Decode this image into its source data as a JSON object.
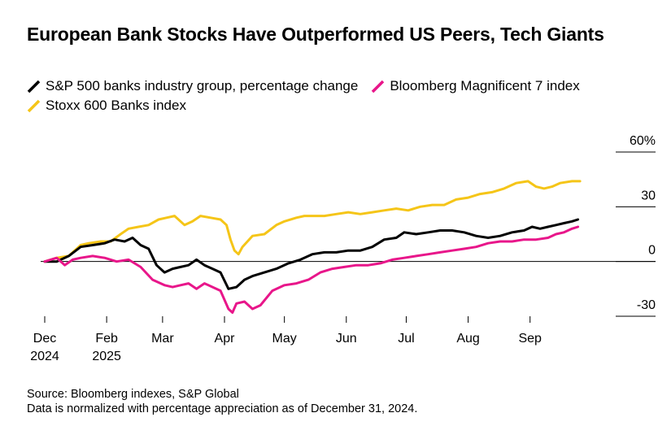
{
  "title": "European Bank Stocks Have Outperformed US Peers, Tech Giants",
  "source": {
    "line1": "Source: Bloomberg indexes, S&P Global",
    "line2": "Data is normalized with percentage appreciation as of December 31, 2024."
  },
  "chart_data": {
    "type": "line",
    "title": "European Bank Stocks Have Outperformed US Peers, Tech Giants",
    "xlabel": "",
    "ylabel": "",
    "ylim": [
      -30,
      60
    ],
    "yticks": [
      {
        "value": 60,
        "label": "60%"
      },
      {
        "value": 30,
        "label": "30"
      },
      {
        "value": 0,
        "label": "0"
      },
      {
        "value": -30,
        "label": "-30"
      }
    ],
    "x_unit": "days since Dec 31, 2024",
    "xlim": [
      0,
      270
    ],
    "xticks": [
      {
        "value": 0,
        "line1": "Dec",
        "line2": "2024"
      },
      {
        "value": 31,
        "line1": "Feb",
        "line2": "2025"
      },
      {
        "value": 59,
        "line1": "Mar",
        "line2": ""
      },
      {
        "value": 90,
        "line1": "Apr",
        "line2": ""
      },
      {
        "value": 120,
        "line1": "May",
        "line2": ""
      },
      {
        "value": 151,
        "line1": "Jun",
        "line2": ""
      },
      {
        "value": 181,
        "line1": "Jul",
        "line2": ""
      },
      {
        "value": 212,
        "line1": "Aug",
        "line2": ""
      },
      {
        "value": 243,
        "line1": "Sep",
        "line2": ""
      }
    ],
    "series": [
      {
        "name": "Stoxx 600 Banks index",
        "color": "#f5c518",
        "x": [
          0,
          6,
          12,
          18,
          22,
          28,
          33,
          38,
          42,
          47,
          52,
          57,
          61,
          65,
          70,
          74,
          78,
          83,
          88,
          91,
          93,
          95,
          97,
          99,
          104,
          110,
          116,
          120,
          126,
          130,
          136,
          140,
          146,
          152,
          158,
          164,
          170,
          176,
          182,
          188,
          194,
          200,
          206,
          212,
          218,
          224,
          230,
          236,
          242,
          246,
          250,
          254,
          258,
          264,
          268
        ],
        "values": [
          0,
          2,
          3,
          9,
          10,
          11,
          11,
          15,
          18,
          19,
          20,
          23,
          24,
          25,
          20,
          22,
          25,
          24,
          23,
          20,
          12,
          6,
          4,
          8,
          14,
          15,
          20,
          22,
          24,
          25,
          25,
          25,
          26,
          27,
          26,
          27,
          28,
          29,
          28,
          30,
          31,
          31,
          34,
          35,
          37,
          38,
          40,
          43,
          44,
          41,
          40,
          41,
          43,
          44,
          44
        ]
      },
      {
        "name": "S&P 500 banks industry group, percentage change",
        "color": "#000000",
        "x": [
          0,
          6,
          12,
          18,
          24,
          30,
          35,
          40,
          44,
          48,
          52,
          56,
          60,
          64,
          68,
          72,
          76,
          80,
          84,
          88,
          92,
          96,
          100,
          104,
          110,
          116,
          122,
          128,
          134,
          140,
          146,
          152,
          158,
          164,
          170,
          176,
          180,
          186,
          192,
          198,
          204,
          210,
          216,
          222,
          228,
          234,
          240,
          244,
          248,
          252,
          256,
          260,
          264,
          267
        ],
        "values": [
          0,
          0,
          3,
          8,
          9,
          10,
          12,
          11,
          13,
          9,
          7,
          -2,
          -6,
          -4,
          -3,
          -2,
          1,
          -2,
          -4,
          -6,
          -15,
          -14,
          -10,
          -8,
          -6,
          -4,
          -1,
          1,
          4,
          5,
          5,
          6,
          6,
          8,
          12,
          13,
          16,
          15,
          16,
          17,
          17,
          16,
          14,
          13,
          14,
          16,
          17,
          19,
          18,
          19,
          20,
          21,
          22,
          23
        ]
      },
      {
        "name": "Bloomberg Magnificent 7 index",
        "color": "#e8168a",
        "x": [
          0,
          6,
          10,
          14,
          18,
          24,
          30,
          36,
          42,
          48,
          54,
          60,
          64,
          68,
          72,
          76,
          80,
          84,
          88,
          92,
          94,
          96,
          100,
          104,
          108,
          114,
          120,
          126,
          132,
          138,
          144,
          150,
          156,
          162,
          168,
          174,
          180,
          186,
          192,
          198,
          204,
          210,
          216,
          222,
          228,
          234,
          240,
          246,
          252,
          256,
          260,
          264,
          267
        ],
        "values": [
          0,
          2,
          -2,
          1,
          2,
          3,
          2,
          0,
          1,
          -3,
          -10,
          -13,
          -14,
          -13,
          -12,
          -15,
          -12,
          -14,
          -16,
          -26,
          -28,
          -23,
          -22,
          -26,
          -24,
          -16,
          -13,
          -12,
          -10,
          -6,
          -4,
          -3,
          -2,
          -2,
          -1,
          1,
          2,
          3,
          4,
          5,
          6,
          7,
          8,
          10,
          11,
          11,
          12,
          12,
          13,
          15,
          16,
          18,
          19
        ]
      }
    ],
    "legend": {
      "placement": "top-left",
      "rows": [
        [
          "S&P 500 banks industry group, percentage change",
          "Bloomberg Magnificent 7 index"
        ],
        [
          "Stoxx 600 Banks index"
        ]
      ]
    }
  }
}
